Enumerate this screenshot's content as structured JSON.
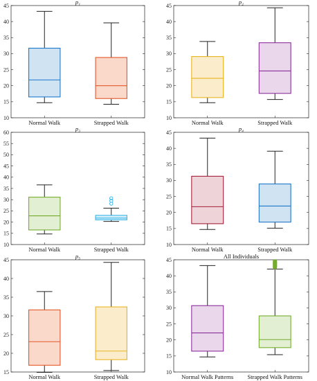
{
  "chart_data": [
    {
      "type": "box",
      "title": "p₁",
      "ylim": [
        10,
        45
      ],
      "yticks": [
        10,
        15,
        20,
        25,
        30,
        35,
        40,
        45
      ],
      "categories": [
        "Normal Walk",
        "Strapped Walk"
      ],
      "boxes": [
        {
          "category": "Normal Walk",
          "min": 14.7,
          "q1": 16.5,
          "median": 21.8,
          "q3": 31.7,
          "max": 43.2,
          "outliers": [],
          "edge_color": "#1f77c8",
          "fill_color": "#cfe3f3"
        },
        {
          "category": "Strapped Walk",
          "min": 14.2,
          "q1": 16.0,
          "median": 20.0,
          "q3": 28.8,
          "max": 39.6,
          "outliers": [],
          "edge_color": "#e2582a",
          "fill_color": "#fad9cb"
        }
      ]
    },
    {
      "type": "box",
      "title": "p₂",
      "ylim": [
        10,
        45
      ],
      "yticks": [
        10,
        15,
        20,
        25,
        30,
        35,
        40,
        45
      ],
      "categories": [
        "Normal Walk",
        "Strapped Walk"
      ],
      "boxes": [
        {
          "category": "Normal Walk",
          "min": 14.7,
          "q1": 16.3,
          "median": 22.3,
          "q3": 29.1,
          "max": 33.8,
          "outliers": [],
          "edge_color": "#e9b422",
          "fill_color": "#fbeccb"
        },
        {
          "category": "Strapped Walk",
          "min": 15.7,
          "q1": 17.6,
          "median": 24.6,
          "q3": 33.4,
          "max": 44.3,
          "outliers": [],
          "edge_color": "#8b2f9b",
          "fill_color": "#ead7ec"
        }
      ]
    },
    {
      "type": "box",
      "title": "p₃",
      "ylim": [
        10,
        60
      ],
      "yticks": [
        10,
        15,
        20,
        25,
        30,
        35,
        40,
        45,
        50,
        55,
        60
      ],
      "categories": [
        "Normal Walk",
        "Strapped Walk"
      ],
      "boxes": [
        {
          "category": "Normal Walk",
          "min": 14.7,
          "q1": 16.5,
          "median": 22.8,
          "q3": 31.1,
          "max": 36.6,
          "outliers": [],
          "edge_color": "#74ad2d",
          "fill_color": "#e3efd2"
        },
        {
          "category": "Strapped Walk",
          "min": 20.3,
          "q1": 21.0,
          "median": 21.8,
          "q3": 23.0,
          "max": 26.2,
          "outliers": [
            28.2,
            29.5,
            30.6
          ],
          "edge_color": "#3ab7e8",
          "fill_color": "#d5eefa"
        }
      ]
    },
    {
      "type": "box",
      "title": "p₄",
      "ylim": [
        10,
        45
      ],
      "yticks": [
        10,
        15,
        20,
        25,
        30,
        35,
        40,
        45
      ],
      "categories": [
        "Normal Walk",
        "Strapped Walk"
      ],
      "boxes": [
        {
          "category": "Normal Walk",
          "min": 14.7,
          "q1": 16.5,
          "median": 21.8,
          "q3": 31.3,
          "max": 43.2,
          "outliers": [],
          "edge_color": "#a3203a",
          "fill_color": "#eed3d8"
        },
        {
          "category": "Strapped Walk",
          "min": 15.1,
          "q1": 17.0,
          "median": 22.0,
          "q3": 28.9,
          "max": 39.1,
          "outliers": [],
          "edge_color": "#1f77c8",
          "fill_color": "#cfe3f3"
        }
      ]
    },
    {
      "type": "box",
      "title": "p₅",
      "ylim": [
        15,
        45
      ],
      "yticks": [
        15,
        20,
        25,
        30,
        35,
        40,
        45
      ],
      "categories": [
        "Normal Walk",
        "Strapped Walk"
      ],
      "boxes": [
        {
          "category": "Normal Walk",
          "min": 14.9,
          "q1": 16.8,
          "median": 23.1,
          "q3": 31.6,
          "max": 36.5,
          "outliers": [],
          "edge_color": "#e2582a",
          "fill_color": "#fad9cb"
        },
        {
          "category": "Strapped Walk",
          "min": 15.4,
          "q1": 18.3,
          "median": 20.6,
          "q3": 32.4,
          "max": 44.3,
          "outliers": [],
          "edge_color": "#e9b422",
          "fill_color": "#fbeccb"
        }
      ]
    },
    {
      "type": "box",
      "title": "All Individuals",
      "ylim": [
        10,
        45
      ],
      "yticks": [
        10,
        15,
        20,
        25,
        30,
        35,
        40,
        45
      ],
      "categories": [
        "Normal Walk Patterns",
        "Strapped Walk Patterns"
      ],
      "boxes": [
        {
          "category": "Normal Walk Patterns",
          "min": 14.7,
          "q1": 16.5,
          "median": 22.2,
          "q3": 30.7,
          "max": 43.2,
          "outliers": [],
          "edge_color": "#8b2f9b",
          "fill_color": "#ead7ec"
        },
        {
          "category": "Strapped Walk Patterns",
          "min": 15.4,
          "q1": 17.6,
          "median": 20.1,
          "q3": 27.5,
          "max": 42.1,
          "outliers": [
            42.7,
            43.0,
            43.3,
            43.6,
            43.9,
            44.2,
            44.5
          ],
          "edge_color": "#74ad2d",
          "fill_color": "#e3efd2"
        }
      ]
    }
  ]
}
